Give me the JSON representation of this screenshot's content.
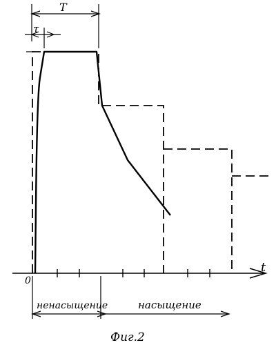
{
  "labels": {
    "period": "T",
    "rise_time": "τ",
    "origin": "0",
    "time_axis": "t",
    "unsaturated": "ненасыщение",
    "saturated": "насыщение",
    "figure_caption": "Фиг.2"
  }
}
